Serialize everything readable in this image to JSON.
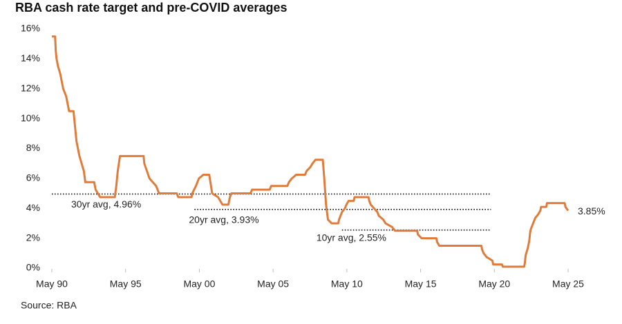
{
  "chart_data": {
    "type": "line",
    "title": "RBA cash rate target and pre-COVID averages",
    "source": "Source: RBA",
    "series": [
      {
        "name": "Cash rate target",
        "color": "#e07b39",
        "x": [
          1990.33,
          1990.55,
          1990.6,
          1990.65,
          1990.75,
          1990.9,
          1991.1,
          1991.3,
          1991.5,
          1991.8,
          1991.9,
          1992.0,
          1992.2,
          1992.5,
          1992.6,
          1993.2,
          1993.3,
          1993.6,
          1994.6,
          1994.7,
          1994.8,
          1994.95,
          1996.55,
          1996.6,
          1996.95,
          1997.4,
          1997.6,
          1998.8,
          1998.9,
          1999.8,
          1999.85,
          2000.1,
          2000.3,
          2000.6,
          2001.0,
          2001.2,
          2001.6,
          2001.9,
          2002.3,
          2002.4,
          2002.5,
          2003.8,
          2003.9,
          2005.1,
          2005.2,
          2006.3,
          2006.4,
          2006.6,
          2006.9,
          2007.5,
          2007.6,
          2007.85,
          2008.0,
          2008.2,
          2008.7,
          2008.8,
          2008.85,
          2008.92,
          2009.05,
          2009.3,
          2009.75,
          2009.8,
          2009.9,
          2010.0,
          2010.2,
          2010.3,
          2010.45,
          2010.8,
          2010.85,
          2011.8,
          2011.85,
          2011.95,
          2012.4,
          2012.5,
          2012.8,
          2012.95,
          2013.4,
          2013.6,
          2015.1,
          2015.15,
          2015.4,
          2016.4,
          2016.45,
          2016.6,
          2019.45,
          2019.5,
          2019.6,
          2019.8,
          2020.2,
          2020.25,
          2020.85,
          2020.9,
          2022.35,
          2022.4,
          2022.45,
          2022.6,
          2022.7,
          2022.75,
          2022.8,
          2022.9,
          2023.0,
          2023.1,
          2023.3,
          2023.45,
          2023.5,
          2023.85,
          2023.9,
          2025.1,
          2025.15,
          2025.33
        ],
        "values": [
          15.5,
          15.5,
          14.5,
          14,
          13.5,
          13,
          12,
          11.5,
          10.5,
          10.5,
          9.5,
          8.5,
          7.5,
          6.5,
          5.75,
          5.75,
          5.25,
          4.75,
          4.75,
          5.5,
          6.5,
          7.5,
          7.5,
          7,
          6,
          5.5,
          5,
          5,
          4.75,
          4.75,
          5,
          5.5,
          6,
          6.25,
          6.25,
          5,
          4.75,
          4.25,
          4.25,
          4.75,
          5,
          5,
          5.25,
          5.25,
          5.5,
          5.5,
          5.75,
          6,
          6.25,
          6.25,
          6.5,
          6.75,
          7,
          7.25,
          7.25,
          6,
          5.25,
          4.25,
          3.25,
          3,
          3,
          3.25,
          3.5,
          3.75,
          4,
          4.25,
          4.5,
          4.5,
          4.75,
          4.75,
          4.5,
          4.25,
          3.75,
          3.5,
          3.25,
          3,
          2.75,
          2.5,
          2.5,
          2.25,
          2,
          2,
          1.75,
          1.5,
          1.5,
          1.25,
          1,
          0.75,
          0.5,
          0.25,
          0.25,
          0.1,
          0.1,
          0.35,
          0.85,
          1.35,
          1.85,
          2.35,
          2.6,
          2.85,
          3.1,
          3.35,
          3.6,
          3.85,
          4.1,
          4.1,
          4.35,
          4.35,
          4.1,
          3.85
        ]
      }
    ],
    "end_label": "3.85%",
    "averages": [
      {
        "label": "30yr avg, 4.96%",
        "value": 4.96,
        "x": [
          1990.33,
          2020.1
        ]
      },
      {
        "label": "20yr avg, 3.93%",
        "value": 3.93,
        "x": [
          2000.0,
          2020.1
        ]
      },
      {
        "label": "10yr avg, 2.55%",
        "value": 2.55,
        "x": [
          2010.0,
          2020.1
        ]
      }
    ],
    "xlim": [
      1990.33,
      2025.33
    ],
    "xticks": [
      {
        "value": 1990.33,
        "label": "May 90"
      },
      {
        "value": 1995.33,
        "label": "May 95"
      },
      {
        "value": 2000.33,
        "label": "May 00"
      },
      {
        "value": 2005.33,
        "label": "May 05"
      },
      {
        "value": 2010.33,
        "label": "May 10"
      },
      {
        "value": 2015.33,
        "label": "May 15"
      },
      {
        "value": 2020.33,
        "label": "May 20"
      },
      {
        "value": 2025.33,
        "label": "May 25"
      }
    ],
    "ylim": [
      0,
      16
    ],
    "yticks": [
      {
        "value": 0,
        "label": "0%"
      },
      {
        "value": 2,
        "label": "2%"
      },
      {
        "value": 4,
        "label": "4%"
      },
      {
        "value": 6,
        "label": "6%"
      },
      {
        "value": 8,
        "label": "8%"
      },
      {
        "value": 10,
        "label": "10%"
      },
      {
        "value": 12,
        "label": "12%"
      },
      {
        "value": 14,
        "label": "14%"
      },
      {
        "value": 16,
        "label": "16%"
      }
    ],
    "grid": false
  }
}
